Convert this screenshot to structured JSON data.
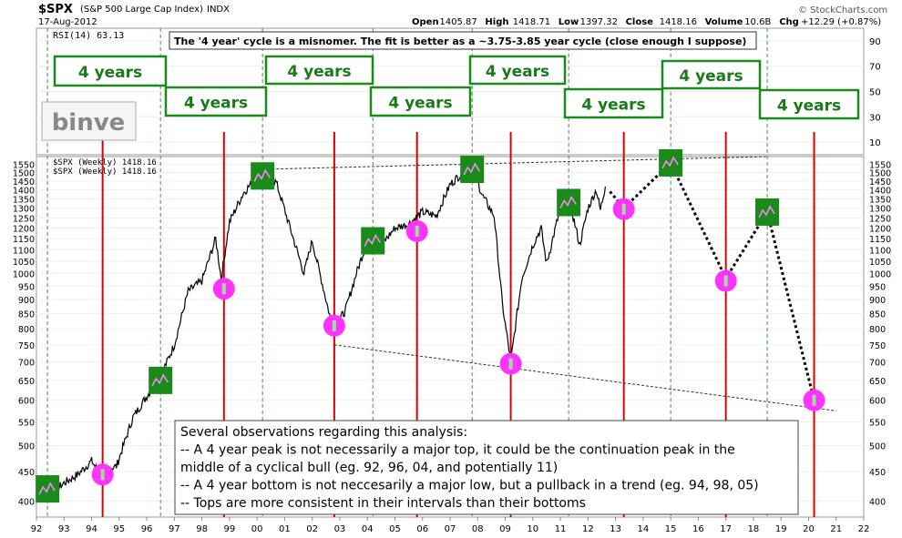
{
  "header": {
    "symbol": "$SPX",
    "name": "(S&P 500 Large Cap Index)",
    "exchange": "INDX",
    "date": "17-Aug-2012",
    "open_label": "Open",
    "open": "1405.87",
    "high_label": "High",
    "high": "1418.71",
    "low_label": "Low",
    "low": "1397.32",
    "close_label": "Close",
    "close": "1418.16",
    "volume_label": "Volume",
    "volume": "10.6B",
    "chg_label": "Chg",
    "chg": "+12.29 (+0.87%)",
    "watermark": "© StockCharts.com"
  },
  "logo": "binve",
  "rsi": {
    "label": "RSI(14) 63.13",
    "ticks": [
      "90",
      "70",
      "50",
      "30",
      "10"
    ]
  },
  "price_panel": {
    "legend1": "$SPX (Weekly) 1418.16",
    "legend2": "$SPX (Weekly) 1418.16"
  },
  "annotation_top": "The '4 year' cycle is a misnomer. The fit is better as a ~3.75-3.85 year cycle (close enough I suppose)",
  "cycle_boxes": [
    "4 years",
    "4 years",
    "4 years",
    "4 years",
    "4 years",
    "4 years",
    "4 years",
    "4 years"
  ],
  "notes": [
    "Several observations regarding this analysis:",
    "-- A 4 year peak is not necessarily a major top, it could be the continuation peak in the",
    "middle of a cyclical bull (eg. 92, 96, 04, and potentially 11)",
    "-- A 4 year bottom is not neccesarily a major low, but a pullback in a trend (eg. 94, 98, 05)",
    "-- Tops are more consistent in their intervals than their bottoms"
  ],
  "chart_data": {
    "type": "line",
    "title": "$SPX (S&P 500 Large Cap Index) INDX",
    "y_scale": "log",
    "y_ticks": [
      400,
      450,
      500,
      550,
      600,
      650,
      700,
      750,
      800,
      850,
      900,
      950,
      1000,
      1050,
      1100,
      1150,
      1200,
      1250,
      1300,
      1350,
      1400,
      1450,
      1500,
      1550
    ],
    "x_ticks": [
      "92",
      "93",
      "94",
      "95",
      "96",
      "97",
      "98",
      "99",
      "00",
      "01",
      "02",
      "03",
      "04",
      "05",
      "06",
      "07",
      "08",
      "09",
      "10",
      "11",
      "12",
      "13",
      "14",
      "15",
      "16",
      "17",
      "18",
      "19",
      "20",
      "21",
      "22"
    ],
    "x_range": [
      1992.0,
      2022.0
    ],
    "series": [
      {
        "values": [
          [
            1992.0,
            405
          ],
          [
            1992.5,
            410
          ],
          [
            1993.0,
            430
          ],
          [
            1993.5,
            445
          ],
          [
            1994.0,
            470
          ],
          [
            1994.25,
            450
          ],
          [
            1994.5,
            455
          ],
          [
            1994.9,
            460
          ],
          [
            1995.5,
            560
          ],
          [
            1996.0,
            610
          ],
          [
            1996.5,
            660
          ],
          [
            1997.0,
            750
          ],
          [
            1997.5,
            930
          ],
          [
            1998.0,
            970
          ],
          [
            1998.5,
            1150
          ],
          [
            1998.7,
            980
          ],
          [
            1999.0,
            1230
          ],
          [
            1999.5,
            1380
          ],
          [
            2000.2,
            1520
          ],
          [
            2000.7,
            1440
          ],
          [
            2001.2,
            1200
          ],
          [
            2001.7,
            1000
          ],
          [
            2002.0,
            1140
          ],
          [
            2002.5,
            900
          ],
          [
            2002.75,
            800
          ],
          [
            2003.2,
            860
          ],
          [
            2003.6,
            1000
          ],
          [
            2004.0,
            1140
          ],
          [
            2004.5,
            1120
          ],
          [
            2005.0,
            1200
          ],
          [
            2005.5,
            1220
          ],
          [
            2006.0,
            1280
          ],
          [
            2006.5,
            1260
          ],
          [
            2007.0,
            1430
          ],
          [
            2007.75,
            1550
          ],
          [
            2008.2,
            1360
          ],
          [
            2008.6,
            1260
          ],
          [
            2008.9,
            880
          ],
          [
            2009.2,
            700
          ],
          [
            2009.6,
            980
          ],
          [
            2010.0,
            1120
          ],
          [
            2010.3,
            1200
          ],
          [
            2010.5,
            1040
          ],
          [
            2011.0,
            1300
          ],
          [
            2011.3,
            1360
          ],
          [
            2011.7,
            1120
          ],
          [
            2012.0,
            1300
          ],
          [
            2012.3,
            1400
          ],
          [
            2012.45,
            1290
          ],
          [
            2012.63,
            1418
          ]
        ]
      },
      {
        "values": [
          [
            2012.8,
            1390
          ],
          [
            2013.3,
            1300
          ],
          [
            2015.0,
            1560
          ],
          [
            2017.0,
            980
          ],
          [
            2018.5,
            1280
          ],
          [
            2020.2,
            600
          ]
        ]
      }
    ],
    "cycle_lows": [
      [
        1994.4,
        445
      ],
      [
        1998.8,
        940
      ],
      [
        2002.8,
        810
      ],
      [
        2005.8,
        1185
      ],
      [
        2009.2,
        695
      ],
      [
        2013.3,
        1295
      ],
      [
        2017.0,
        970
      ],
      [
        2020.2,
        600
      ]
    ],
    "cycle_highs": [
      [
        1992.4,
        420
      ],
      [
        1996.5,
        650
      ],
      [
        2000.2,
        1480
      ],
      [
        2004.2,
        1140
      ],
      [
        2007.8,
        1520
      ],
      [
        2011.3,
        1330
      ],
      [
        2015.0,
        1560
      ],
      [
        2018.5,
        1280
      ]
    ],
    "red_cycle_lines": [
      1994.4,
      1998.8,
      2002.8,
      2005.8,
      2009.2,
      2013.3,
      2017.0,
      2020.2
    ],
    "green_cycle_lines": [
      1992.4,
      1996.5,
      2000.2,
      2004.2,
      2007.8,
      2011.3,
      2015.0,
      2018.5
    ],
    "trendline_top": [
      [
        2000.2,
        1520
      ],
      [
        2018.5,
        1600
      ]
    ],
    "trendline_bottom": [
      [
        2002.8,
        750
      ],
      [
        2021.0,
        575
      ]
    ],
    "colors": {
      "price": "#000000",
      "top_box": "#1a8a1a",
      "low_circle": "#ff33ff",
      "cycle_red": "#dd0000",
      "cycle_green": "#3a9a3a"
    }
  }
}
